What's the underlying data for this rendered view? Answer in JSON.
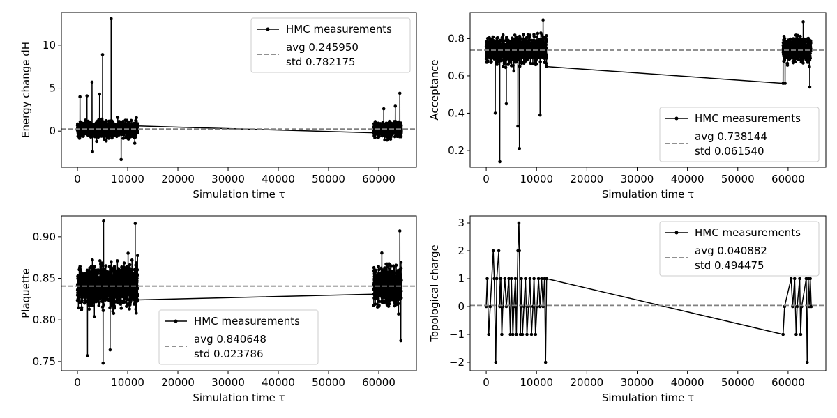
{
  "chart_data": [
    {
      "id": "dh",
      "type": "line",
      "xlabel": "Simulation time τ",
      "ylabel": "Energy change dH",
      "xlim": [
        -3200,
        67500
      ],
      "ylim": [
        -4.2,
        13.8
      ],
      "xticks": [
        0,
        10000,
        20000,
        30000,
        40000,
        50000,
        60000
      ],
      "yticks": [
        0,
        5,
        10
      ],
      "ytick_labels": [
        "0",
        "5",
        "10"
      ],
      "grid": false,
      "legend": {
        "placement": "top-right",
        "series_label": "HMC measurements",
        "avg_label": "avg 0.245950",
        "std_label": "std 0.782175"
      },
      "avg": 0.24595,
      "std": 0.782175,
      "segments": [
        {
          "x_start": 0,
          "x_end": 12000,
          "n": 1100,
          "center": 0.25,
          "spread": 0.75,
          "min": -2.3,
          "max": 1.9
        },
        {
          "x_start": 59000,
          "x_end": 64500,
          "n": 550,
          "center": 0.15,
          "spread": 0.75,
          "min": -1.8,
          "max": 1.8
        }
      ],
      "spikes": [
        {
          "x": 6700,
          "y": 13.1
        },
        {
          "x": 5000,
          "y": 8.9
        },
        {
          "x": 2900,
          "y": 5.7
        },
        {
          "x": 4400,
          "y": 4.3
        },
        {
          "x": 8700,
          "y": 4.3
        },
        {
          "x": 1900,
          "y": 4.1
        },
        {
          "x": 500,
          "y": 4.0
        },
        {
          "x": 64200,
          "y": 4.4
        },
        {
          "x": 8700,
          "y": -3.3
        },
        {
          "x": 3000,
          "y": -2.4
        },
        {
          "x": 61000,
          "y": 2.6
        },
        {
          "x": 63300,
          "y": 2.9
        }
      ],
      "connector": [
        {
          "x": 12000,
          "y": 0.6
        },
        {
          "x": 59000,
          "y": -0.2
        }
      ]
    },
    {
      "id": "acc",
      "type": "line",
      "xlabel": "Simulation time τ",
      "ylabel": "Acceptance",
      "xlim": [
        -3200,
        67500
      ],
      "ylim": [
        0.11,
        0.94
      ],
      "xticks": [
        0,
        10000,
        20000,
        30000,
        40000,
        50000,
        60000
      ],
      "yticks": [
        0.2,
        0.4,
        0.6,
        0.8
      ],
      "ytick_labels": [
        "0.2",
        "0.4",
        "0.6",
        "0.8"
      ],
      "grid": false,
      "legend": {
        "placement": "bottom-right",
        "series_label": "HMC measurements",
        "avg_label": "avg 0.738144",
        "std_label": "std 0.061540"
      },
      "avg": 0.738144,
      "std": 0.06154,
      "segments": [
        {
          "x_start": 0,
          "x_end": 12000,
          "n": 1100,
          "center": 0.74,
          "spread": 0.055,
          "min": 0.6,
          "max": 0.86
        },
        {
          "x_start": 59000,
          "x_end": 64500,
          "n": 550,
          "center": 0.74,
          "spread": 0.05,
          "min": 0.62,
          "max": 0.87
        }
      ],
      "spikes": [
        {
          "x": 2700,
          "y": 0.14
        },
        {
          "x": 6600,
          "y": 0.21
        },
        {
          "x": 1800,
          "y": 0.4
        },
        {
          "x": 6300,
          "y": 0.33
        },
        {
          "x": 10700,
          "y": 0.39
        },
        {
          "x": 4000,
          "y": 0.45
        },
        {
          "x": 11300,
          "y": 0.9
        },
        {
          "x": 63000,
          "y": 0.89
        },
        {
          "x": 64300,
          "y": 0.54
        },
        {
          "x": 59400,
          "y": 0.56
        }
      ],
      "connector": [
        {
          "x": 12000,
          "y": 0.65
        },
        {
          "x": 59000,
          "y": 0.56
        }
      ]
    },
    {
      "id": "plaq",
      "type": "line",
      "xlabel": "Simulation time τ",
      "ylabel": "Plaquette",
      "xlim": [
        -3200,
        67500
      ],
      "ylim": [
        0.739,
        0.925
      ],
      "xticks": [
        0,
        10000,
        20000,
        30000,
        40000,
        50000,
        60000
      ],
      "yticks": [
        0.75,
        0.8,
        0.85,
        0.9
      ],
      "ytick_labels": [
        "0.75",
        "0.80",
        "0.85",
        "0.90"
      ],
      "grid": false,
      "legend": {
        "placement": "lower-center",
        "series_label": "HMC measurements",
        "avg_label": "avg 0.840648",
        "std_label": "std 0.023786"
      },
      "avg": 0.840648,
      "std": 0.023786,
      "segments": [
        {
          "x_start": 0,
          "x_end": 12000,
          "n": 1100,
          "center": 0.841,
          "spread": 0.02,
          "min": 0.785,
          "max": 0.895
        },
        {
          "x_start": 59000,
          "x_end": 64500,
          "n": 550,
          "center": 0.841,
          "spread": 0.02,
          "min": 0.785,
          "max": 0.895
        }
      ],
      "spikes": [
        {
          "x": 5200,
          "y": 0.919
        },
        {
          "x": 11500,
          "y": 0.916
        },
        {
          "x": 5100,
          "y": 0.748
        },
        {
          "x": 2000,
          "y": 0.757
        },
        {
          "x": 6500,
          "y": 0.764
        },
        {
          "x": 64200,
          "y": 0.907
        },
        {
          "x": 64400,
          "y": 0.775
        }
      ],
      "connector": [
        {
          "x": 12000,
          "y": 0.824
        },
        {
          "x": 59000,
          "y": 0.831
        }
      ]
    },
    {
      "id": "topo",
      "type": "line",
      "xlabel": "Simulation time τ",
      "ylabel": "Topological charge",
      "xlim": [
        -3200,
        67500
      ],
      "ylim": [
        -2.3,
        3.25
      ],
      "xticks": [
        0,
        10000,
        20000,
        30000,
        40000,
        50000,
        60000
      ],
      "yticks": [
        -2,
        -1,
        0,
        1,
        2,
        3
      ],
      "ytick_labels": [
        "−2",
        "−1",
        "0",
        "1",
        "2",
        "3"
      ],
      "grid": false,
      "legend": {
        "placement": "top-right",
        "series_label": "HMC measurements",
        "avg_label": "avg 0.040882",
        "std_label": "std 0.494475"
      },
      "avg": 0.040882,
      "std": 0.494475,
      "segments": [],
      "steps": [
        {
          "x": 0,
          "y": 0
        },
        {
          "x": 200,
          "y": 1
        },
        {
          "x": 500,
          "y": -1
        },
        {
          "x": 800,
          "y": 0
        },
        {
          "x": 1400,
          "y": 2
        },
        {
          "x": 1600,
          "y": 1
        },
        {
          "x": 1900,
          "y": -2
        },
        {
          "x": 2100,
          "y": 1
        },
        {
          "x": 2500,
          "y": 2
        },
        {
          "x": 2700,
          "y": 0
        },
        {
          "x": 2900,
          "y": 1
        },
        {
          "x": 3100,
          "y": -1
        },
        {
          "x": 3300,
          "y": 0
        },
        {
          "x": 3700,
          "y": 1
        },
        {
          "x": 4000,
          "y": 0
        },
        {
          "x": 4500,
          "y": 1
        },
        {
          "x": 4800,
          "y": -1
        },
        {
          "x": 5000,
          "y": 1
        },
        {
          "x": 5300,
          "y": -1
        },
        {
          "x": 5500,
          "y": 0
        },
        {
          "x": 5800,
          "y": 1
        },
        {
          "x": 6000,
          "y": -1
        },
        {
          "x": 6300,
          "y": 2
        },
        {
          "x": 6500,
          "y": 3
        },
        {
          "x": 6600,
          "y": 2
        },
        {
          "x": 6800,
          "y": -1
        },
        {
          "x": 7000,
          "y": 1
        },
        {
          "x": 7200,
          "y": -1
        },
        {
          "x": 7500,
          "y": 0
        },
        {
          "x": 7800,
          "y": 1
        },
        {
          "x": 8100,
          "y": -1
        },
        {
          "x": 8400,
          "y": 0
        },
        {
          "x": 8700,
          "y": 1
        },
        {
          "x": 9000,
          "y": -1
        },
        {
          "x": 9300,
          "y": 0
        },
        {
          "x": 9500,
          "y": 1
        },
        {
          "x": 9800,
          "y": -1
        },
        {
          "x": 10100,
          "y": 0
        },
        {
          "x": 10400,
          "y": 1
        },
        {
          "x": 10700,
          "y": 0
        },
        {
          "x": 11000,
          "y": 1
        },
        {
          "x": 11300,
          "y": 0
        },
        {
          "x": 11600,
          "y": 1
        },
        {
          "x": 11800,
          "y": -2
        },
        {
          "x": 12000,
          "y": 1
        },
        {
          "x": 59000,
          "y": -1
        },
        {
          "x": 59300,
          "y": 0
        },
        {
          "x": 60600,
          "y": 1
        },
        {
          "x": 60900,
          "y": 0
        },
        {
          "x": 61300,
          "y": 1
        },
        {
          "x": 61600,
          "y": -1
        },
        {
          "x": 61800,
          "y": 0
        },
        {
          "x": 62300,
          "y": 1
        },
        {
          "x": 62500,
          "y": -1
        },
        {
          "x": 62700,
          "y": 0
        },
        {
          "x": 63600,
          "y": 1
        },
        {
          "x": 63800,
          "y": -2
        },
        {
          "x": 64000,
          "y": 1
        },
        {
          "x": 64200,
          "y": 0
        },
        {
          "x": 64400,
          "y": 1
        },
        {
          "x": 64600,
          "y": 0
        }
      ]
    }
  ]
}
